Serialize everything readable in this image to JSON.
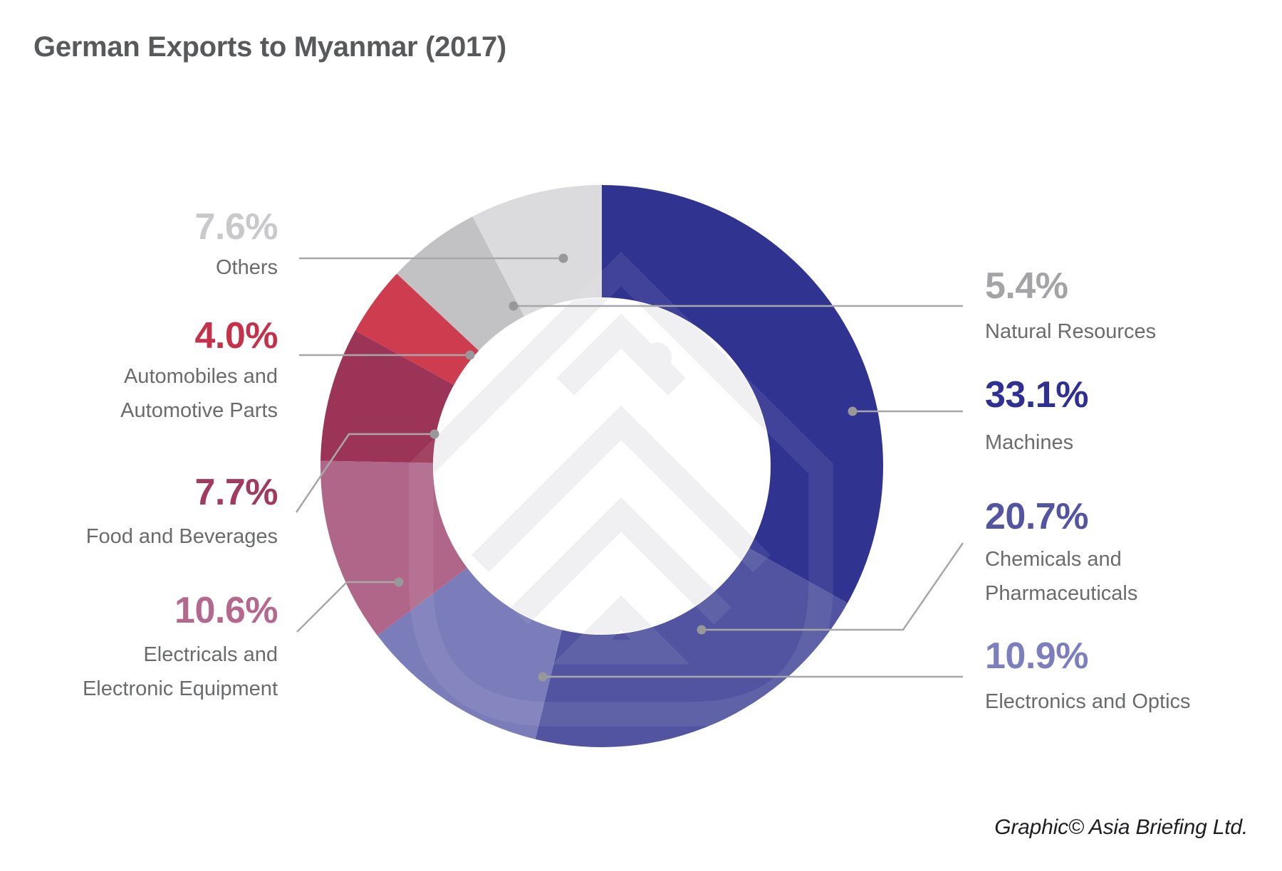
{
  "header": {
    "title": "German Exports to Myanmar (2017)"
  },
  "footer": {
    "credit": "Graphic© Asia Briefing Ltd."
  },
  "colors": {
    "background": "#ffffff",
    "title_text": "#58595a",
    "caption_text": "#6a6b6d",
    "callout_line": "#a7a7aa",
    "callout_dot": "#98989b",
    "watermark": "#f0f0f2"
  },
  "chart_data": {
    "type": "pie",
    "variant": "donut",
    "title": "German Exports to Myanmar (2017)",
    "direction": "clockwise",
    "start_angle_deg": 0,
    "total_pct": 100,
    "legend_position": "callout-labels-both-sides",
    "watermark": "asia-briefing-logo",
    "segments": [
      {
        "id": "machines",
        "label": "Machines",
        "label_lines": [
          "Machines"
        ],
        "value_pct": 33.1,
        "display": "33.1%",
        "color": "#303390",
        "number_color": "#2e3192",
        "label_side": "right"
      },
      {
        "id": "chemicals",
        "label": "Chemicals and Pharmaceuticals",
        "label_lines": [
          "Chemicals and",
          "Pharmaceuticals"
        ],
        "value_pct": 20.7,
        "display": "20.7%",
        "color": "#5254a1",
        "number_color": "#5355a2",
        "label_side": "right"
      },
      {
        "id": "electronics",
        "label": "Electronics and Optics",
        "label_lines": [
          "Electronics and Optics"
        ],
        "value_pct": 10.9,
        "display": "10.9%",
        "color": "#7b7cba",
        "number_color": "#7d7ebd",
        "label_side": "right"
      },
      {
        "id": "electricals",
        "label": "Electricals and Electronic Equipment",
        "label_lines": [
          "Electricals and",
          "Electronic Equipment"
        ],
        "value_pct": 10.6,
        "display": "10.6%",
        "color": "#af6689",
        "number_color": "#b4688d",
        "label_side": "left"
      },
      {
        "id": "food",
        "label": "Food and Beverages",
        "label_lines": [
          "Food and Beverages"
        ],
        "value_pct": 7.7,
        "display": "7.7%",
        "color": "#9c3457",
        "number_color": "#a23a5f",
        "label_side": "left"
      },
      {
        "id": "automobiles",
        "label": "Automobiles and Automotive Parts",
        "label_lines": [
          "Automobiles and",
          "Automotive Parts"
        ],
        "value_pct": 4.0,
        "display": "4.0%",
        "color": "#ce3d4f",
        "number_color": "#c5314b",
        "label_side": "left"
      },
      {
        "id": "natural",
        "label": "Natural Resources",
        "label_lines": [
          "Natural Resources"
        ],
        "value_pct": 5.4,
        "display": "5.4%",
        "color": "#c2c2c5",
        "number_color": "#a4a4a7",
        "label_side": "right"
      },
      {
        "id": "others",
        "label": "Others",
        "label_lines": [
          "Others"
        ],
        "value_pct": 7.6,
        "display": "7.6%",
        "color": "#dbdbde",
        "number_color": "#c9c9cc",
        "label_side": "left"
      }
    ]
  }
}
